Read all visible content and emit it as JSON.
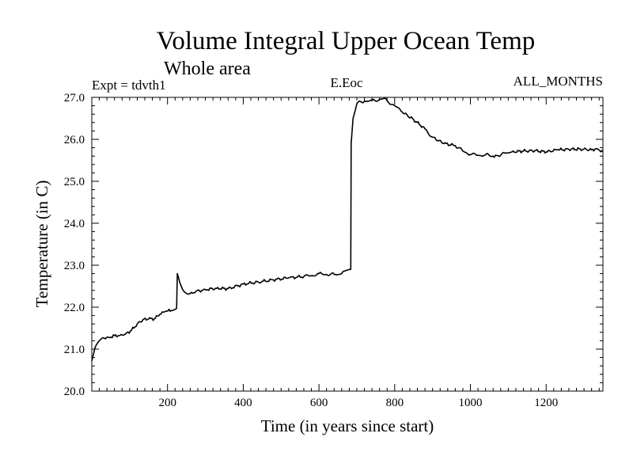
{
  "chart_data": {
    "type": "line",
    "title": "Volume Integral Upper Ocean Temp",
    "subtitle": "Whole area",
    "left_note": "Expt = tdvth1",
    "center_note": "E.Eoc",
    "right_note": "ALL_MONTHS",
    "xlabel": "Time (in years since start)",
    "ylabel": "Temperature (in C)",
    "xlim": [
      0,
      1350
    ],
    "ylim": [
      20.0,
      27.0
    ],
    "x_ticks": [
      200,
      400,
      600,
      800,
      1000,
      1200
    ],
    "x_tick_labels": [
      "200",
      "400",
      "600",
      "800",
      "1000",
      "1200"
    ],
    "y_ticks": [
      20,
      21,
      22,
      23,
      24,
      25,
      26,
      27
    ],
    "y_tick_labels": [
      "20.0",
      "21.0",
      "22.0",
      "23.0",
      "24.0",
      "25.0",
      "26.0",
      "27.0"
    ],
    "grid": false,
    "series": [
      {
        "name": "E.Eoc",
        "color": "#000000",
        "x": [
          0,
          5,
          12,
          20,
          30,
          45,
          60,
          75,
          90,
          105,
          120,
          135,
          150,
          165,
          180,
          195,
          210,
          224,
          226,
          232,
          240,
          250,
          260,
          275,
          300,
          330,
          360,
          400,
          440,
          480,
          520,
          560,
          580,
          600,
          620,
          640,
          660,
          672,
          680,
          684,
          685,
          690,
          700,
          720,
          740,
          760,
          770,
          780,
          800,
          820,
          850,
          880,
          900,
          930,
          960,
          980,
          1000,
          1020,
          1040,
          1060,
          1075,
          1090,
          1110,
          1140,
          1170,
          1200,
          1230,
          1260,
          1290,
          1320,
          1335,
          1350
        ],
        "values": [
          20.72,
          20.9,
          21.1,
          21.2,
          21.27,
          21.28,
          21.32,
          21.33,
          21.37,
          21.45,
          21.6,
          21.7,
          21.72,
          21.72,
          21.83,
          21.9,
          21.92,
          21.97,
          22.8,
          22.6,
          22.42,
          22.33,
          22.32,
          22.38,
          22.42,
          22.45,
          22.44,
          22.55,
          22.6,
          22.65,
          22.7,
          22.73,
          22.75,
          22.8,
          22.78,
          22.78,
          22.8,
          22.88,
          22.9,
          22.9,
          25.9,
          26.5,
          26.85,
          26.91,
          26.92,
          26.95,
          26.97,
          26.92,
          26.8,
          26.65,
          26.47,
          26.25,
          26.05,
          25.9,
          25.85,
          25.72,
          25.64,
          25.62,
          25.63,
          25.6,
          25.6,
          25.68,
          25.7,
          25.72,
          25.73,
          25.7,
          25.75,
          25.76,
          25.77,
          25.75,
          25.78,
          25.7
        ]
      }
    ]
  }
}
